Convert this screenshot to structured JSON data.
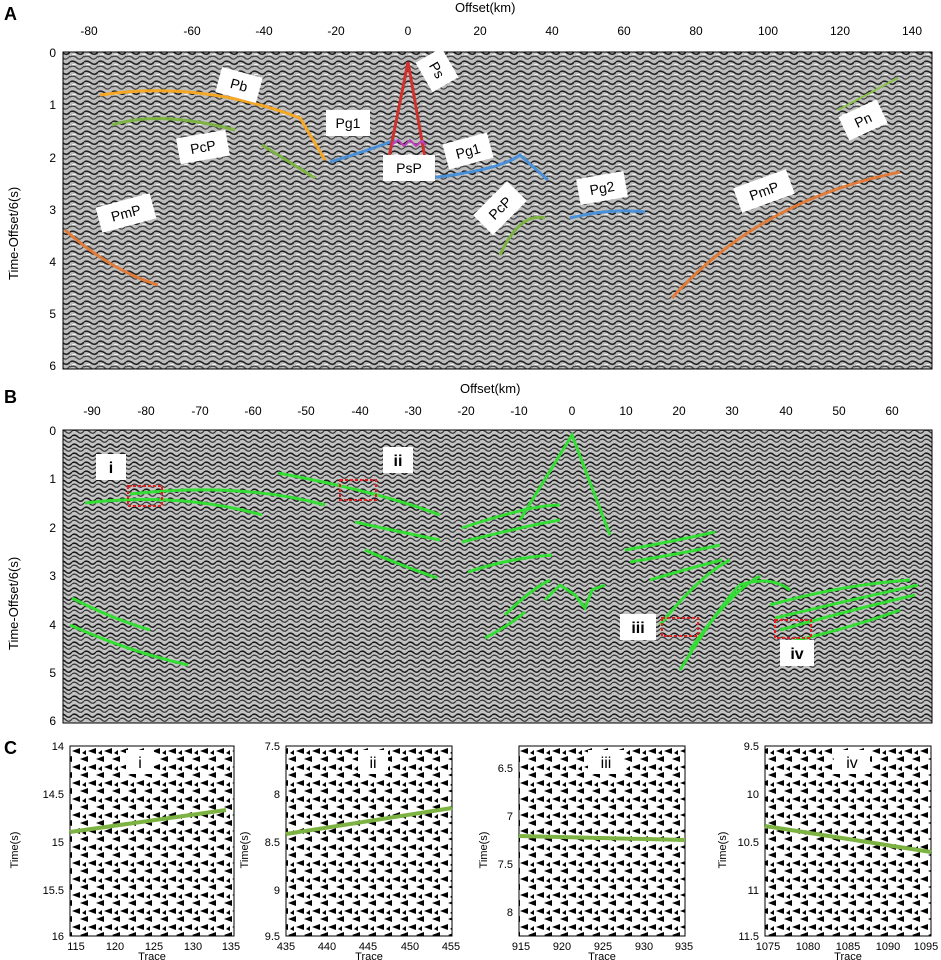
{
  "panel_a": {
    "letter": "A",
    "x_title": "Offset(km)",
    "y_title": "Time-Offset/6(s)",
    "x_ticks": [
      "-80",
      "-60",
      "-40",
      "-20",
      "0",
      "20",
      "40",
      "60",
      "80",
      "100",
      "120",
      "140"
    ],
    "y_ticks": [
      "0",
      "1",
      "2",
      "3",
      "4",
      "5",
      "6"
    ],
    "phase_labels": [
      "Pb",
      "Ps",
      "Pg1",
      "PcP",
      "PsP",
      "Pg1",
      "PmP",
      "PcP",
      "Pg2",
      "PmP",
      "Pn"
    ]
  },
  "panel_b": {
    "letter": "B",
    "x_title": "Offset(km)",
    "y_title": "Time-Offset/6(s)",
    "x_ticks": [
      "-90",
      "-80",
      "-70",
      "-60",
      "-50",
      "-40",
      "-30",
      "-20",
      "-10",
      "0",
      "10",
      "20",
      "30",
      "40",
      "50",
      "60"
    ],
    "y_ticks": [
      "0",
      "1",
      "2",
      "3",
      "4",
      "5",
      "6"
    ],
    "box_labels": [
      "i",
      "ii",
      "iii",
      "iv"
    ]
  },
  "panel_c": {
    "letter": "C",
    "x_title": "Trace",
    "y_title": "Time(s)",
    "subpanels": [
      {
        "label": "i",
        "y_ticks": [
          "14",
          "14.5",
          "15",
          "15.5",
          "16"
        ],
        "x_ticks": [
          "115",
          "120",
          "125",
          "130",
          "135"
        ]
      },
      {
        "label": "ii",
        "y_ticks": [
          "7.5",
          "8",
          "8.5",
          "9",
          "9.5"
        ],
        "x_ticks": [
          "435",
          "440",
          "445",
          "450",
          "455"
        ]
      },
      {
        "label": "iii",
        "y_ticks": [
          "6.5",
          "7",
          "7.5",
          "8"
        ],
        "x_ticks": [
          "915",
          "920",
          "925",
          "930",
          "935"
        ]
      },
      {
        "label": "iv",
        "y_ticks": [
          "9.5",
          "10",
          "10.5",
          "11",
          "11.5"
        ],
        "x_ticks": [
          "1075",
          "1080",
          "1085",
          "1090",
          "1095"
        ]
      }
    ]
  },
  "colors": {
    "pb": "#f5a623",
    "pg": "#4a90d9",
    "pcp": "#7cb342",
    "pmp": "#e07b39",
    "ps": "#d0312d",
    "psp": "#c040c0",
    "pn": "#8bc34a",
    "green_pick": "#33dd33",
    "box": "#e02020"
  }
}
